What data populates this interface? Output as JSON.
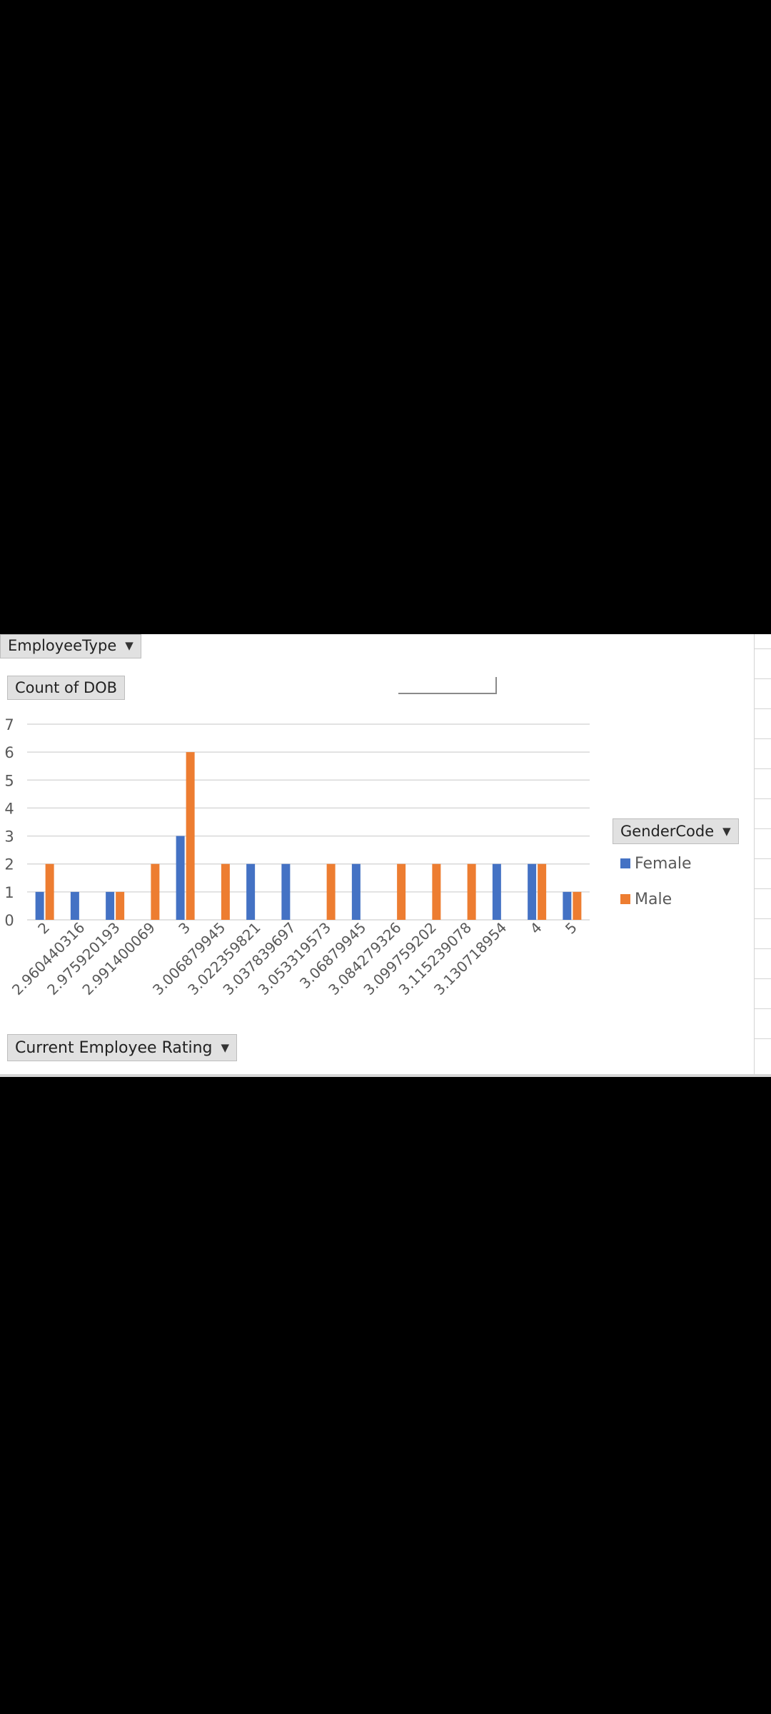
{
  "report_filter": {
    "label": "EmployeeType"
  },
  "values_field": {
    "label": "Count of DOB"
  },
  "axis_field": {
    "label": "Current Employee Rating"
  },
  "legend_field": {
    "label": "GenderCode"
  },
  "chart_data": {
    "type": "bar",
    "categories": [
      "2",
      "2.960440316",
      "2.975920193",
      "2.991400069",
      "3",
      "3.006879945",
      "3.022359821",
      "3.037839697",
      "3.053319573",
      "3.06879945",
      "3.084279326",
      "3.099759202",
      "3.115239078",
      "3.130718954",
      "4",
      "5"
    ],
    "series": [
      {
        "name": "Female",
        "color": "#4472c4",
        "values": [
          1,
          1,
          1,
          0,
          3,
          0,
          2,
          2,
          0,
          2,
          0,
          0,
          0,
          2,
          2,
          1
        ]
      },
      {
        "name": "Male",
        "color": "#ed7d31",
        "values": [
          2,
          0,
          1,
          2,
          6,
          2,
          0,
          0,
          2,
          0,
          2,
          2,
          2,
          0,
          2,
          1
        ]
      }
    ],
    "ylim": [
      0,
      7
    ],
    "yticks": [
      0,
      1,
      2,
      3,
      4,
      5,
      6,
      7
    ],
    "grid": true,
    "legend_position": "right",
    "xlabel": "",
    "ylabel": "",
    "title": ""
  }
}
